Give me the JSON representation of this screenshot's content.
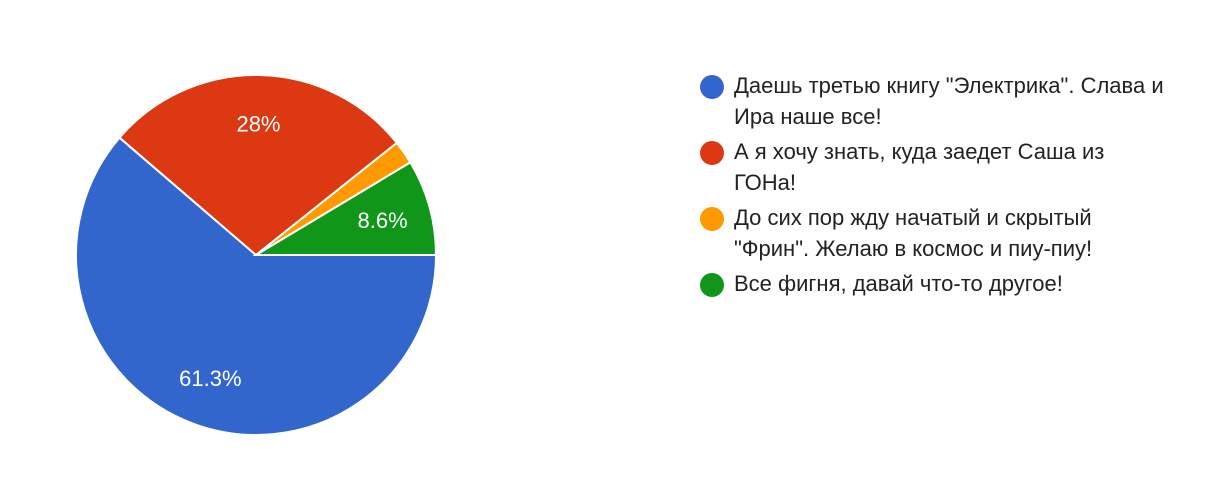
{
  "chart_data": {
    "type": "pie",
    "title": "",
    "slices": [
      {
        "name": "Даешь третью книгу \"Электрика\". Слава и Ира наше все!",
        "value": 61.3,
        "label": "61.3%",
        "color": "#3366cc"
      },
      {
        "name": "А я хочу знать, куда заедет Саша из ГОНа!",
        "value": 28,
        "label": "28%",
        "color": "#dc3912"
      },
      {
        "name": "До сих пор жду начатый и скрытый \"Фрин\". Желаю в космос и пиу-пиу!",
        "value": 2.1,
        "label": "",
        "color": "#ff9900"
      },
      {
        "name": "Все фигня, давай что-то другое!",
        "value": 8.6,
        "label": "8.6%",
        "color": "#109618"
      }
    ],
    "legend_position": "right"
  }
}
